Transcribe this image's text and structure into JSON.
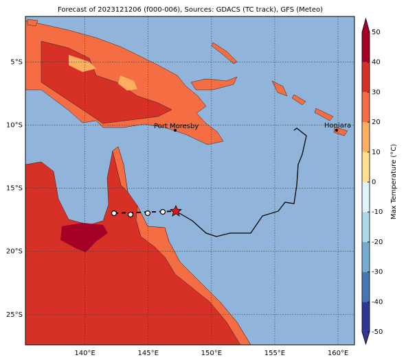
{
  "title": "Forecast of 2023121206 (f000-006), Sources: GDACS (TC track), GFS (Meteo)",
  "lon_ticks": [
    {
      "value": 140,
      "label": "140°E"
    },
    {
      "value": 145,
      "label": "145°E"
    },
    {
      "value": 150,
      "label": "150°E"
    },
    {
      "value": 155,
      "label": "155°E"
    },
    {
      "value": 160,
      "label": "160°E"
    }
  ],
  "lat_ticks": [
    {
      "value": -5,
      "label": "5°S"
    },
    {
      "value": -10,
      "label": "10°S"
    },
    {
      "value": -15,
      "label": "15°S"
    },
    {
      "value": -20,
      "label": "20°S"
    },
    {
      "value": -25,
      "label": "25°S"
    }
  ],
  "lonlim": [
    135.3,
    161.3
  ],
  "latlim": [
    -1.4,
    -27.4
  ],
  "places": [
    {
      "name": "Port Moresby"
    },
    {
      "name": "Honiara"
    }
  ],
  "colorbar": {
    "label": "Max Temperature (°C)",
    "ticks": [
      -50,
      -40,
      -30,
      -20,
      -10,
      0,
      10,
      20,
      30,
      40,
      50
    ],
    "colors": [
      "#313695",
      "#4575b4",
      "#74add1",
      "#abd9e9",
      "#e0f3f8",
      "#fee090",
      "#fdae61",
      "#f46d43",
      "#d73027",
      "#a50026"
    ]
  }
}
